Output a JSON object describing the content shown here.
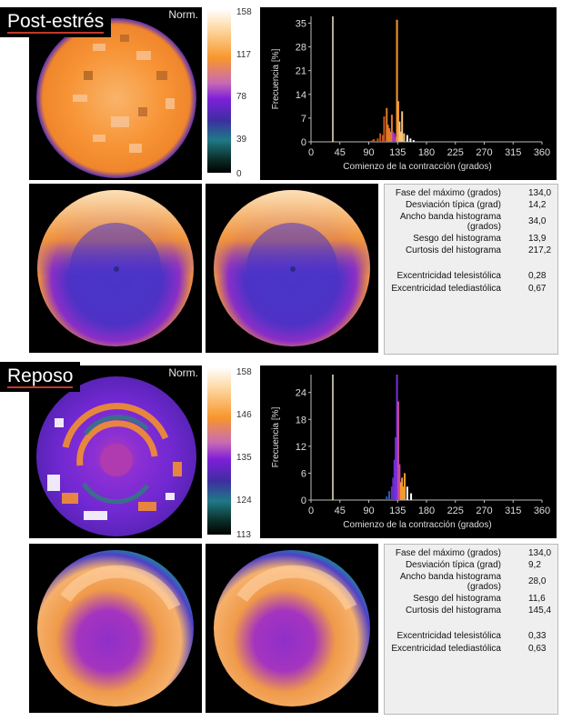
{
  "sections": [
    {
      "tag": "Post-estrés",
      "norm_label": "Norm.",
      "colorbar_ticks": [
        "158",
        "117",
        "78",
        "39",
        "0"
      ],
      "chart_data": {
        "type": "bar",
        "title": "",
        "xlabel": "Comienzo de la contracción (grados)",
        "ylabel": "Frecuencia [%]",
        "xlim": [
          0,
          360
        ],
        "ylim": [
          0,
          37
        ],
        "x_ticks": [
          "0",
          "45",
          "90",
          "135",
          "180",
          "225",
          "270",
          "315",
          "360"
        ],
        "y_ticks": [
          "0",
          "7",
          "14",
          "21",
          "28",
          "35"
        ],
        "reference_line_x": 34,
        "x": [
          96,
          98,
          104,
          108,
          112,
          114,
          118,
          120,
          122,
          124,
          126,
          128,
          130,
          132,
          134,
          136,
          138,
          140,
          142,
          145,
          150,
          155,
          160
        ],
        "values": [
          0.5,
          0.8,
          1.0,
          2.5,
          2.0,
          7.5,
          10.0,
          5.0,
          4.0,
          3.0,
          8.0,
          3.0,
          2.5,
          1.5,
          36.0,
          12.0,
          6.0,
          3.0,
          9.0,
          2.5,
          2.0,
          1.0,
          0.5
        ]
      },
      "stats": [
        {
          "label": "Fase del máximo (grados)",
          "value": "134,0"
        },
        {
          "label": "Desviación típica (grad)",
          "value": "14,2"
        },
        {
          "label": "Ancho banda histograma",
          "label2": "(grados)",
          "value": "34,0"
        },
        {
          "label": "Sesgo del histograma",
          "value": "13,9"
        },
        {
          "label": "Curtosis del histograma",
          "value": "217,2"
        },
        {
          "label": "Excentricidad telesistólica",
          "value": "0,28"
        },
        {
          "label": "Excentricidad telediastólica",
          "value": "0,67"
        }
      ]
    },
    {
      "tag": "Reposo",
      "norm_label": "Norm.",
      "colorbar_ticks": [
        "158",
        "146",
        "135",
        "124",
        "113"
      ],
      "chart_data": {
        "type": "bar",
        "title": "",
        "xlabel": "Comienzo de la contracción (grados)",
        "ylabel": "Frecuencia [%]",
        "xlim": [
          0,
          360
        ],
        "ylim": [
          0,
          28
        ],
        "x_ticks": [
          "0",
          "45",
          "90",
          "135",
          "180",
          "225",
          "270",
          "315",
          "360"
        ],
        "y_ticks": [
          "0",
          "6",
          "12",
          "18",
          "24"
        ],
        "reference_line_x": 34,
        "x": [
          118,
          122,
          126,
          128,
          130,
          132,
          134,
          136,
          138,
          140,
          142,
          144,
          146,
          150,
          156
        ],
        "values": [
          0.8,
          2.0,
          3.0,
          5.0,
          9.0,
          14.0,
          28.0,
          22.0,
          8.0,
          4.0,
          5.0,
          3.0,
          6.0,
          3.0,
          1.5
        ]
      },
      "stats": [
        {
          "label": "Fase del máximo (grados)",
          "value": "134,0"
        },
        {
          "label": "Desviación típica (grad)",
          "value": "9,2"
        },
        {
          "label": "Ancho banda histograma",
          "label2": "(grados)",
          "value": "28,0"
        },
        {
          "label": "Sesgo del histograma",
          "value": "11,6"
        },
        {
          "label": "Curtosis del histograma",
          "value": "145,4"
        },
        {
          "label": "Excentricidad telesistólica",
          "value": "0,33"
        },
        {
          "label": "Excentricidad telediastólica",
          "value": "0,63"
        }
      ]
    }
  ]
}
